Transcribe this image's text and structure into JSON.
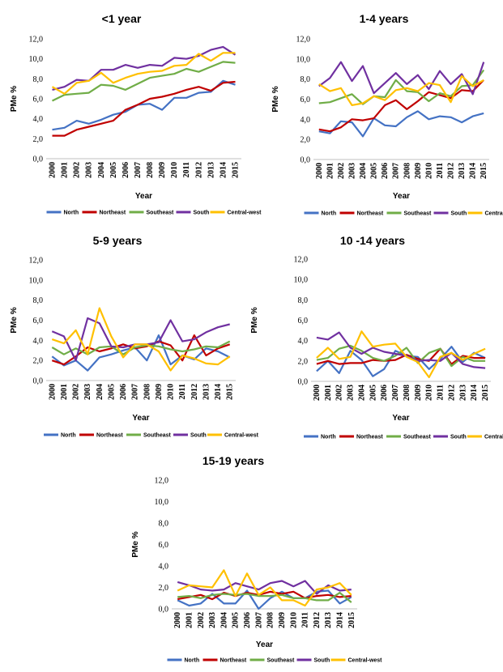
{
  "colors": {
    "North": "#4472c4",
    "Northeast": "#c00000",
    "Southeast": "#70ad47",
    "South": "#7030a0",
    "Central-west": "#ffc000"
  },
  "chart_data": [
    {
      "type": "line",
      "title": "<1 year",
      "xlabel": "Year",
      "ylabel": "PMe %",
      "ylim": [
        0,
        12
      ],
      "yticks": [
        "0,0",
        "2,0",
        "4,0",
        "6,0",
        "8,0",
        "10,0",
        "12,0"
      ],
      "categories": [
        "2000",
        "2001",
        "2002",
        "2003",
        "2004",
        "2005",
        "2006",
        "2007",
        "2008",
        "2009",
        "2010",
        "2011",
        "2012",
        "2013",
        "2014",
        "2015"
      ],
      "grid": false,
      "legend": "bottom",
      "series": [
        {
          "name": "North",
          "values": [
            2.9,
            3.1,
            3.8,
            3.5,
            3.9,
            4.4,
            4.7,
            5.4,
            5.5,
            4.9,
            6.1,
            6.1,
            6.6,
            6.7,
            7.8,
            7.4
          ]
        },
        {
          "name": "Northeast",
          "values": [
            2.3,
            2.3,
            2.9,
            3.2,
            3.5,
            3.8,
            4.9,
            5.4,
            6.0,
            6.2,
            6.5,
            6.9,
            7.2,
            6.8,
            7.6,
            7.7
          ]
        },
        {
          "name": "Southeast",
          "values": [
            5.8,
            6.4,
            6.5,
            6.6,
            7.4,
            7.3,
            6.9,
            7.5,
            8.1,
            8.3,
            8.5,
            9.0,
            8.7,
            9.2,
            9.7,
            9.6
          ]
        },
        {
          "name": "South",
          "values": [
            6.9,
            7.2,
            7.9,
            7.8,
            8.9,
            8.9,
            9.4,
            9.1,
            9.4,
            9.3,
            10.1,
            10.0,
            10.3,
            10.9,
            11.2,
            10.4
          ]
        },
        {
          "name": "Central-west",
          "values": [
            7.2,
            6.5,
            7.6,
            7.8,
            8.6,
            7.6,
            8.1,
            8.5,
            8.7,
            8.8,
            9.3,
            9.4,
            10.5,
            9.8,
            10.6,
            10.6
          ]
        }
      ]
    },
    {
      "type": "line",
      "title": "1-4 years",
      "xlabel": "Year",
      "ylabel": "PMe %",
      "ylim": [
        0,
        12
      ],
      "yticks": [
        "0,0",
        "2,0",
        "4,0",
        "6,0",
        "8,0",
        "10,0",
        "12,0"
      ],
      "categories": [
        "2000",
        "2001",
        "2002",
        "2003",
        "2004",
        "2005",
        "2006",
        "2007",
        "2008",
        "2009",
        "2010",
        "2011",
        "2012",
        "2013",
        "2014",
        "2015"
      ],
      "grid": false,
      "legend": "bottom",
      "series": [
        {
          "name": "North",
          "values": [
            2.8,
            2.6,
            3.8,
            3.7,
            2.3,
            4.1,
            3.4,
            3.3,
            4.2,
            4.8,
            4.0,
            4.3,
            4.2,
            3.7,
            4.3,
            4.6
          ]
        },
        {
          "name": "Northeast",
          "values": [
            3.0,
            2.8,
            3.2,
            4.0,
            3.9,
            4.1,
            5.4,
            5.9,
            5.0,
            5.8,
            6.7,
            6.4,
            6.1,
            6.9,
            6.8,
            7.9
          ]
        },
        {
          "name": "Southeast",
          "values": [
            5.6,
            5.7,
            6.1,
            6.5,
            5.5,
            6.3,
            6.2,
            7.9,
            6.8,
            6.7,
            5.8,
            6.6,
            6.3,
            7.3,
            7.4,
            8.9
          ]
        },
        {
          "name": "South",
          "values": [
            7.3,
            8.1,
            9.7,
            7.8,
            9.3,
            6.6,
            7.6,
            8.6,
            7.5,
            8.4,
            7.0,
            8.8,
            7.5,
            8.5,
            6.5,
            9.7
          ]
        },
        {
          "name": "Central-west",
          "values": [
            7.5,
            6.8,
            7.1,
            5.4,
            5.6,
            6.3,
            5.9,
            6.9,
            7.1,
            6.8,
            7.6,
            7.4,
            5.7,
            8.3,
            7.3,
            7.9
          ]
        }
      ]
    },
    {
      "type": "line",
      "title": "5-9 years",
      "xlabel": "Year",
      "ylabel": "PMe %",
      "ylim": [
        0,
        12
      ],
      "yticks": [
        "0,0",
        "2,0",
        "4,0",
        "6,0",
        "8,0",
        "10,0",
        "12,0"
      ],
      "categories": [
        "2000",
        "2001",
        "2002",
        "2003",
        "2004",
        "2005",
        "2006",
        "2007",
        "2008",
        "2009",
        "2010",
        "2011",
        "2012",
        "2013",
        "2014",
        "2015"
      ],
      "grid": false,
      "legend": "bottom",
      "series": [
        {
          "name": "North",
          "values": [
            2.4,
            1.5,
            2.0,
            1.0,
            2.3,
            2.6,
            3.0,
            3.3,
            2.0,
            4.5,
            1.6,
            2.5,
            2.1,
            3.2,
            2.9,
            2.3
          ]
        },
        {
          "name": "Northeast",
          "values": [
            2.0,
            1.6,
            2.4,
            3.3,
            2.9,
            3.2,
            3.6,
            3.2,
            3.4,
            3.9,
            3.5,
            2.0,
            4.5,
            2.5,
            3.2,
            3.6
          ]
        },
        {
          "name": "Southeast",
          "values": [
            3.3,
            2.6,
            3.2,
            2.6,
            3.3,
            3.4,
            2.6,
            3.3,
            3.5,
            3.4,
            3.1,
            2.9,
            3.1,
            3.4,
            3.3,
            3.9
          ]
        },
        {
          "name": "South",
          "values": [
            4.9,
            4.4,
            2.0,
            6.2,
            5.7,
            3.4,
            3.3,
            3.6,
            3.6,
            3.8,
            6.0,
            3.9,
            4.1,
            4.8,
            5.3,
            5.6
          ]
        },
        {
          "name": "Central-west",
          "values": [
            4.1,
            3.7,
            5.0,
            2.6,
            7.2,
            4.4,
            2.3,
            3.6,
            3.6,
            2.9,
            1.0,
            2.5,
            2.2,
            1.7,
            1.6,
            2.4
          ]
        }
      ]
    },
    {
      "type": "line",
      "title": "10 -14 years",
      "xlabel": "Year",
      "ylabel": "PMe %",
      "ylim": [
        0,
        12
      ],
      "yticks": [
        "0,0",
        "2,0",
        "4,0",
        "6,0",
        "8,0",
        "10,0",
        "12,0"
      ],
      "categories": [
        "2000",
        "2001",
        "2002",
        "2003",
        "2004",
        "2005",
        "2006",
        "2007",
        "2008",
        "2009",
        "2010",
        "2011",
        "2012",
        "2013",
        "2014",
        "2015"
      ],
      "grid": false,
      "legend": "bottom",
      "series": [
        {
          "name": "North",
          "values": [
            1.0,
            2.0,
            0.8,
            3.0,
            2.1,
            0.5,
            1.2,
            3.0,
            2.5,
            2.4,
            1.2,
            2.2,
            3.4,
            1.9,
            2.8,
            2.3
          ]
        },
        {
          "name": "Northeast",
          "values": [
            1.7,
            2.0,
            1.7,
            1.8,
            1.8,
            2.1,
            2.0,
            2.1,
            2.6,
            2.2,
            2.0,
            3.2,
            1.7,
            2.5,
            2.3,
            2.3
          ]
        },
        {
          "name": "Southeast",
          "values": [
            2.1,
            2.3,
            3.2,
            3.5,
            3.0,
            2.3,
            2.0,
            2.5,
            3.3,
            1.8,
            2.8,
            3.2,
            1.5,
            2.4,
            2.0,
            2.0
          ]
        },
        {
          "name": "South",
          "values": [
            4.3,
            4.1,
            4.8,
            3.3,
            2.7,
            3.3,
            2.9,
            2.7,
            2.5,
            2.0,
            2.1,
            2.0,
            2.8,
            1.7,
            1.4,
            1.3
          ]
        },
        {
          "name": "Central-west",
          "values": [
            2.3,
            3.3,
            2.2,
            2.4,
            4.9,
            3.4,
            3.6,
            3.7,
            2.4,
            1.9,
            0.4,
            2.4,
            2.8,
            2.1,
            2.7,
            3.2
          ]
        }
      ]
    },
    {
      "type": "line",
      "title": "15-19 years",
      "xlabel": "Year",
      "ylabel": "PMe %",
      "ylim": [
        0,
        12
      ],
      "yticks": [
        "0,0",
        "2,0",
        "4,0",
        "6,0",
        "8,0",
        "10,0",
        "12,0"
      ],
      "categories": [
        "2000",
        "2001",
        "2002",
        "2003",
        "2004",
        "2005",
        "2006",
        "2007",
        "2008",
        "2009",
        "2010",
        "2011",
        "2012",
        "2013",
        "2014",
        "2015"
      ],
      "grid": false,
      "legend": "bottom",
      "series": [
        {
          "name": "North",
          "values": [
            0.8,
            0.3,
            0.5,
            1.4,
            0.5,
            0.5,
            1.7,
            0.0,
            1.0,
            1.6,
            1.0,
            1.0,
            1.6,
            1.7,
            0.5,
            1.1
          ]
        },
        {
          "name": "Northeast",
          "values": [
            0.9,
            1.1,
            1.3,
            0.9,
            1.5,
            1.2,
            1.5,
            1.3,
            1.6,
            1.4,
            1.6,
            1.0,
            1.2,
            1.3,
            1.1,
            1.2
          ]
        },
        {
          "name": "Southeast",
          "values": [
            1.1,
            1.2,
            1.0,
            1.3,
            1.4,
            1.3,
            1.4,
            1.2,
            1.2,
            1.3,
            1.0,
            1.0,
            0.8,
            0.8,
            1.5,
            0.6
          ]
        },
        {
          "name": "South",
          "values": [
            2.5,
            2.2,
            1.8,
            1.7,
            1.8,
            2.4,
            2.1,
            1.8,
            2.4,
            2.6,
            2.1,
            2.6,
            1.4,
            2.2,
            1.7,
            1.8
          ]
        },
        {
          "name": "Central-west",
          "values": [
            1.7,
            2.2,
            2.1,
            2.0,
            3.6,
            1.2,
            3.3,
            1.3,
            2.0,
            0.8,
            0.8,
            0.3,
            1.8,
            2.0,
            2.4,
            1.3
          ]
        }
      ]
    }
  ]
}
